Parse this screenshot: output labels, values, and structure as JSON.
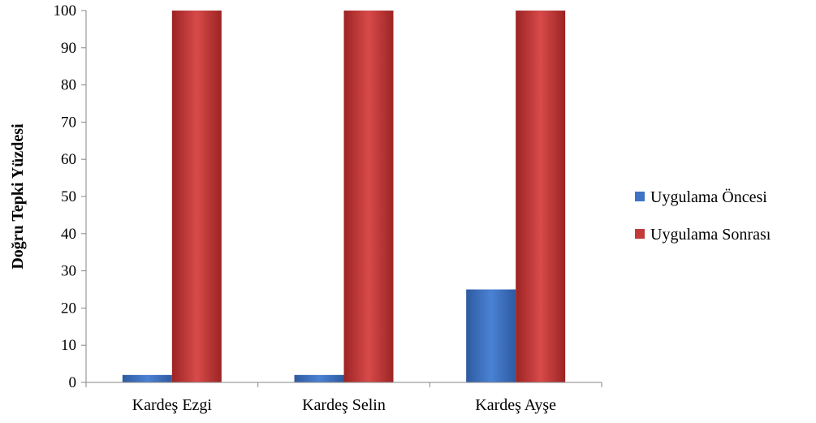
{
  "chart_data": {
    "type": "bar",
    "title": "",
    "xlabel": "",
    "ylabel": "Doğru Tepki Yüzdesi",
    "categories": [
      "Kardeş Ezgi",
      "Kardeş Selin",
      "Kardeş Ayşe"
    ],
    "series": [
      {
        "name": "Uygulama Öncesi",
        "values": [
          2,
          2,
          25
        ],
        "color": "#3f74c4"
      },
      {
        "name": "Uygulama Sonrası",
        "values": [
          100,
          100,
          100
        ],
        "color": "#c23a3a"
      }
    ],
    "ylim": [
      0,
      100
    ],
    "yticks": [
      0,
      10,
      20,
      30,
      40,
      50,
      60,
      70,
      80,
      90,
      100
    ],
    "grid": false,
    "legend_position": "right"
  }
}
